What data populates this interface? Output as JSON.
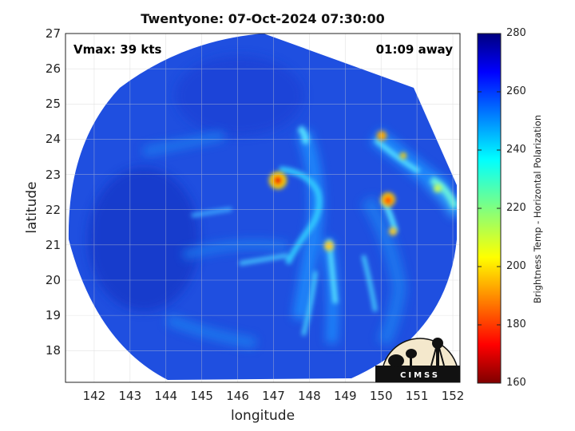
{
  "title": "Twentyone: 07-Oct-2024 07:30:00",
  "vmax_label": "Vmax: 39 kts",
  "time_away": "01:09 away",
  "xlabel": "longitude",
  "ylabel": "latitude",
  "colorbar": {
    "label": "Brightness Temp - Horizontal Polarization",
    "min": 160,
    "max": 280,
    "ticks": [
      "280",
      "260",
      "240",
      "220",
      "200",
      "180",
      "160"
    ],
    "colormap": "jet"
  },
  "map": {
    "xlim": [
      141.2,
      152.2
    ],
    "ylim": [
      17.1,
      27
    ],
    "xticks": [
      "142",
      "143",
      "144",
      "145",
      "146",
      "147",
      "148",
      "149",
      "150",
      "151",
      "152"
    ],
    "yticks": [
      "27",
      "26",
      "25",
      "24",
      "23",
      "22",
      "21",
      "20",
      "19",
      "18"
    ],
    "grid": true,
    "background_color": "#1f4fe0",
    "storm_center": {
      "lon": 147.0,
      "lat": 22.85
    },
    "warm_spots": [
      {
        "lon": 147.0,
        "lat": 22.85,
        "level": "hot"
      },
      {
        "lon": 150.2,
        "lat": 22.3,
        "level": "hot"
      },
      {
        "lon": 150.1,
        "lat": 24.1,
        "level": "warm"
      },
      {
        "lon": 148.5,
        "lat": 20.9,
        "level": "warm"
      },
      {
        "lon": 150.4,
        "lat": 21.35,
        "level": "warm"
      }
    ]
  },
  "logo": {
    "text": "CIMSS"
  }
}
